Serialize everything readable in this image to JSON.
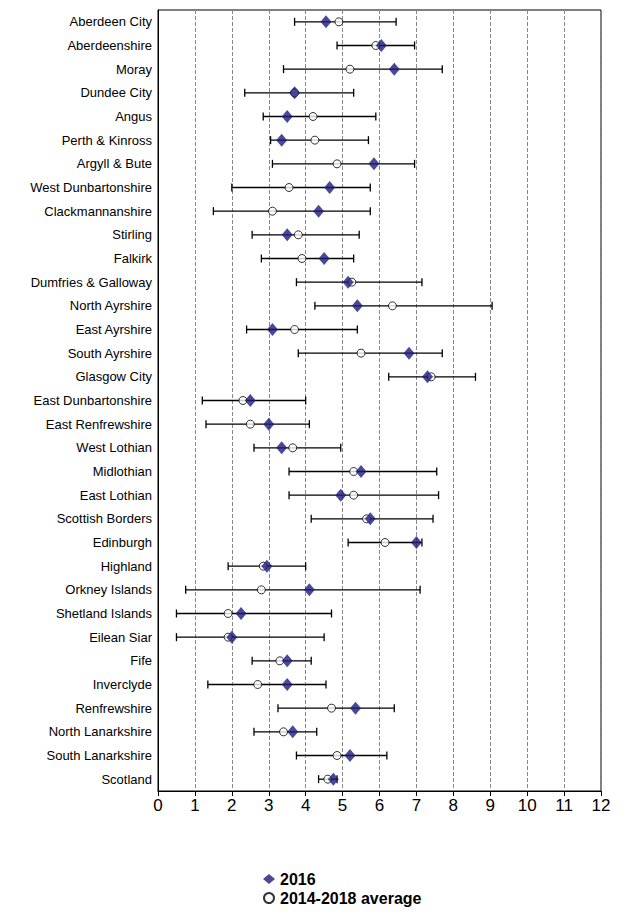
{
  "chart_data": {
    "type": "scatter",
    "categories": [
      "Aberdeen City",
      "Aberdeenshire",
      "Moray",
      "Dundee City",
      "Angus",
      "Perth & Kinross",
      "Argyll & Bute",
      "West Dunbartonshire",
      "Clackmannanshire",
      "Stirling",
      "Falkirk",
      "Dumfries & Galloway",
      "North Ayrshire",
      "East Ayrshire",
      "South Ayrshire",
      "Glasgow City",
      "East Dunbartonshire",
      "East Renfrewshire",
      "West Lothian",
      "Midlothian",
      "East Lothian",
      "Scottish Borders",
      "Edinburgh",
      "Highland",
      "Orkney Islands",
      "Shetland Islands",
      "Eilean Siar",
      "Fife",
      "Inverclyde",
      "Renfrewshire",
      "North Lanarkshire",
      "South Lanarkshire",
      "Scotland"
    ],
    "series": [
      {
        "name": "2016",
        "color": "#1c1c7c",
        "marker": "diamond",
        "values": [
          4.55,
          6.05,
          6.4,
          3.7,
          3.5,
          3.35,
          5.85,
          4.65,
          4.35,
          3.5,
          4.5,
          5.15,
          5.4,
          3.1,
          6.8,
          7.3,
          2.5,
          3.0,
          3.35,
          5.5,
          4.95,
          5.75,
          7.0,
          2.95,
          4.1,
          2.25,
          2.0,
          3.5,
          3.5,
          5.35,
          3.65,
          5.2,
          4.75
        ],
        "error_low": [
          3.7,
          4.85,
          3.4,
          2.35,
          2.85,
          3.05,
          3.1,
          2.0,
          1.5,
          2.55,
          2.8,
          3.75,
          4.25,
          2.4,
          3.8,
          6.25,
          1.2,
          1.3,
          2.6,
          3.55,
          3.55,
          4.15,
          5.15,
          1.9,
          0.75,
          0.5,
          0.5,
          2.55,
          1.35,
          3.25,
          2.6,
          3.75,
          4.35
        ],
        "error_high": [
          6.45,
          6.95,
          7.7,
          5.3,
          5.9,
          5.7,
          6.95,
          5.75,
          5.75,
          5.45,
          5.3,
          7.15,
          9.05,
          5.4,
          7.7,
          8.6,
          4.0,
          4.1,
          4.95,
          7.55,
          7.6,
          7.45,
          7.15,
          4.0,
          7.1,
          4.7,
          4.5,
          4.15,
          4.55,
          6.4,
          4.3,
          6.2,
          4.85
        ]
      },
      {
        "name": "2014-2018 average",
        "color": "#ffffff",
        "marker": "circle",
        "values": [
          4.9,
          5.9,
          5.2,
          3.7,
          4.2,
          4.25,
          4.85,
          3.55,
          3.1,
          3.8,
          3.9,
          5.25,
          6.35,
          3.7,
          5.5,
          7.4,
          2.3,
          2.5,
          3.65,
          5.3,
          5.3,
          5.65,
          6.15,
          2.85,
          2.8,
          1.9,
          1.9,
          3.3,
          2.7,
          4.7,
          3.4,
          4.85,
          4.6
        ]
      }
    ],
    "xlim": [
      0,
      12
    ],
    "xticks": [
      0,
      1,
      2,
      3,
      4,
      5,
      6,
      7,
      8,
      9,
      10,
      11,
      12
    ],
    "grid": true,
    "legend": "bottom"
  }
}
